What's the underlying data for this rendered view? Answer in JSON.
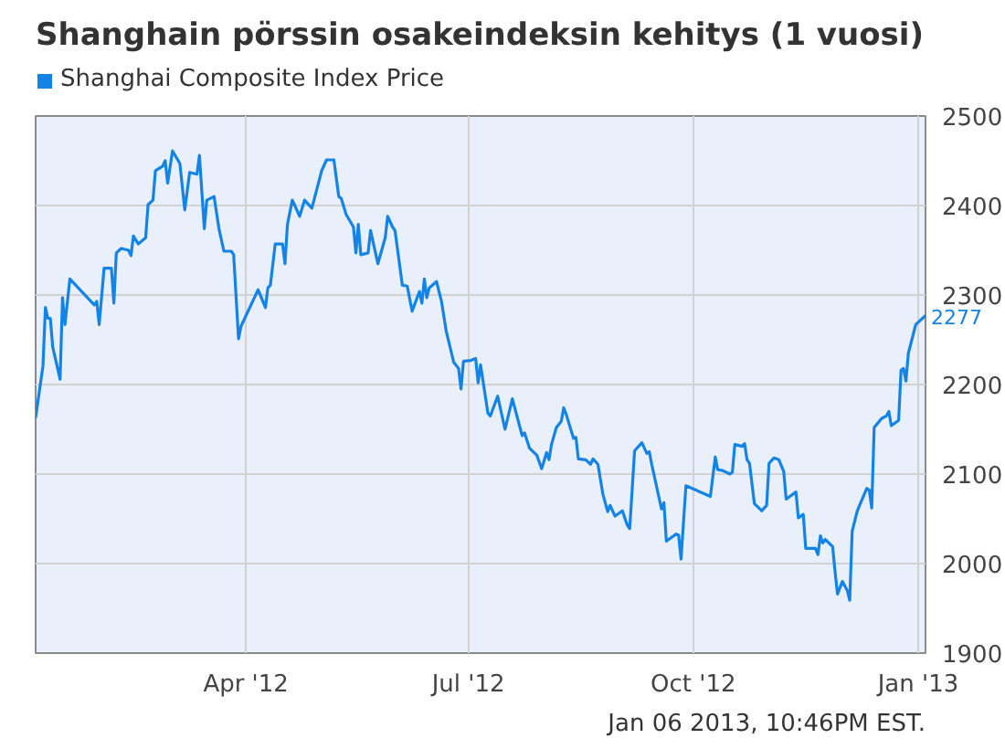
{
  "chart_data": {
    "type": "line",
    "title": "Shanghain pörssin osakeindeksin kehitys (1 vuosi)",
    "annotations": [
      {
        "text": "2277",
        "x": "2013-01-04",
        "y": 2277
      },
      "Jan 06 2013, 10:46PM EST."
    ],
    "x": [
      "2012-01-06",
      "2012-01-09",
      "2012-01-10",
      "2012-01-11",
      "2012-01-12",
      "2012-01-13",
      "2012-01-16",
      "2012-01-17",
      "2012-01-18",
      "2012-01-20",
      "2012-01-30",
      "2012-01-31",
      "2012-02-01",
      "2012-02-03",
      "2012-02-06",
      "2012-02-07",
      "2012-02-08",
      "2012-02-10",
      "2012-02-13",
      "2012-02-14",
      "2012-02-15",
      "2012-02-17",
      "2012-02-20",
      "2012-02-21",
      "2012-02-23",
      "2012-02-24",
      "2012-02-27",
      "2012-02-28",
      "2012-02-29",
      "2012-03-02",
      "2012-03-05",
      "2012-03-07",
      "2012-03-09",
      "2012-03-12",
      "2012-03-13",
      "2012-03-15",
      "2012-03-16",
      "2012-03-19",
      "2012-03-21",
      "2012-03-23",
      "2012-03-26",
      "2012-03-27",
      "2012-03-29",
      "2012-03-30",
      "2012-04-06",
      "2012-04-09",
      "2012-04-10",
      "2012-04-11",
      "2012-04-13",
      "2012-04-16",
      "2012-04-17",
      "2012-04-18",
      "2012-04-20",
      "2012-04-23",
      "2012-04-25",
      "2012-04-28",
      "2012-05-02",
      "2012-05-04",
      "2012-05-07",
      "2012-05-09",
      "2012-05-10",
      "2012-05-12",
      "2012-05-15",
      "2012-05-16",
      "2012-05-17",
      "2012-05-18",
      "2012-05-21",
      "2012-05-22",
      "2012-05-25",
      "2012-05-28",
      "2012-05-29",
      "2012-05-31",
      "2012-06-01",
      "2012-06-04",
      "2012-06-06",
      "2012-06-08",
      "2012-06-11",
      "2012-06-12",
      "2012-06-13",
      "2012-06-14",
      "2012-06-15",
      "2012-06-18",
      "2012-06-20",
      "2012-06-22",
      "2012-06-25",
      "2012-06-27",
      "2012-06-28",
      "2012-06-29",
      "2012-07-02",
      "2012-07-04",
      "2012-07-05",
      "2012-07-06",
      "2012-07-09",
      "2012-07-10",
      "2012-07-13",
      "2012-07-16",
      "2012-07-19",
      "2012-07-23",
      "2012-07-24",
      "2012-07-26",
      "2012-07-29",
      "2012-07-31",
      "2012-08-02",
      "2012-08-03",
      "2012-08-04",
      "2012-08-06",
      "2012-08-08",
      "2012-08-09",
      "2012-08-10",
      "2012-08-13",
      "2012-08-14",
      "2012-08-15",
      "2012-08-18",
      "2012-08-20",
      "2012-08-21",
      "2012-08-23",
      "2012-08-25",
      "2012-08-27",
      "2012-08-28",
      "2012-08-30",
      "2012-09-02",
      "2012-09-04",
      "2012-09-05",
      "2012-09-07",
      "2012-09-10",
      "2012-09-11",
      "2012-09-12",
      "2012-09-13",
      "2012-09-14",
      "2012-09-18",
      "2012-09-19",
      "2012-09-20",
      "2012-09-24",
      "2012-09-25",
      "2012-09-26",
      "2012-09-28",
      "2012-10-08",
      "2012-10-10",
      "2012-10-11",
      "2012-10-13",
      "2012-10-16",
      "2012-10-17",
      "2012-10-18",
      "2012-10-21",
      "2012-10-22",
      "2012-10-23",
      "2012-10-24",
      "2012-10-26",
      "2012-10-29",
      "2012-10-31",
      "2012-11-01",
      "2012-11-03",
      "2012-11-05",
      "2012-11-07",
      "2012-11-08",
      "2012-11-10",
      "2012-11-12",
      "2012-11-13",
      "2012-11-15",
      "2012-11-16",
      "2012-11-20",
      "2012-11-21",
      "2012-11-22",
      "2012-11-23",
      "2012-11-24",
      "2012-11-27",
      "2012-11-28",
      "2012-11-29",
      "2012-12-01",
      "2012-12-03",
      "2012-12-04",
      "2012-12-05",
      "2012-12-07",
      "2012-12-08",
      "2012-12-11",
      "2012-12-12",
      "2012-12-13",
      "2012-12-14",
      "2012-12-17",
      "2012-12-19",
      "2012-12-20",
      "2012-12-21",
      "2012-12-24",
      "2012-12-25",
      "2012-12-26",
      "2012-12-27",
      "2012-12-28",
      "2012-12-31",
      "2013-01-02",
      "2013-01-04"
    ],
    "series": [
      {
        "name": "Shanghai Composite Index Price",
        "color": "#1383e6",
        "values": [
          2163,
          2221,
          2286,
          2274,
          2274,
          2242,
          2206,
          2297,
          2267,
          2318,
          2289,
          2293,
          2267,
          2330,
          2330,
          2291,
          2347,
          2352,
          2350,
          2344,
          2366,
          2357,
          2364,
          2401,
          2406,
          2439,
          2444,
          2450,
          2425,
          2461,
          2447,
          2395,
          2437,
          2435,
          2456,
          2374,
          2406,
          2410,
          2374,
          2349,
          2349,
          2345,
          2251,
          2265,
          2306,
          2286,
          2308,
          2311,
          2357,
          2357,
          2335,
          2379,
          2406,
          2388,
          2406,
          2397,
          2439,
          2451,
          2451,
          2410,
          2408,
          2390,
          2376,
          2347,
          2379,
          2345,
          2347,
          2372,
          2335,
          2364,
          2388,
          2376,
          2372,
          2311,
          2310,
          2282,
          2304,
          2291,
          2318,
          2297,
          2308,
          2315,
          2293,
          2259,
          2225,
          2218,
          2195,
          2226,
          2227,
          2229,
          2202,
          2222,
          2168,
          2165,
          2187,
          2150,
          2184,
          2143,
          2146,
          2129,
          2121,
          2106,
          2124,
          2116,
          2133,
          2152,
          2159,
          2174,
          2167,
          2140,
          2141,
          2117,
          2116,
          2111,
          2117,
          2111,
          2078,
          2058,
          2065,
          2053,
          2059,
          2043,
          2039,
          2126,
          2135,
          2129,
          2123,
          2125,
          2111,
          2061,
          2068,
          2025,
          2033,
          2032,
          2005,
          2087,
          2075,
          2119,
          2105,
          2104,
          2100,
          2102,
          2133,
          2131,
          2134,
          2116,
          2112,
          2067,
          2059,
          2065,
          2112,
          2118,
          2116,
          2103,
          2072,
          2076,
          2080,
          2051,
          2055,
          2017,
          2017,
          2010,
          2031,
          2023,
          2027,
          2019,
          1991,
          1966,
          1980,
          1970,
          1959,
          2036,
          2058,
          2065,
          2084,
          2082,
          2062,
          2152,
          2162,
          2165,
          2170,
          2154,
          2160,
          2216,
          2218,
          2204,
          2235,
          2267,
          2272,
          2277
        ]
      }
    ],
    "xlim": [
      "2012-01-06",
      "2013-01-04"
    ],
    "xticks": [
      {
        "value": "2012-04-01",
        "label": "Apr '12"
      },
      {
        "value": "2012-07-01",
        "label": "Jul '12"
      },
      {
        "value": "2012-10-01",
        "label": "Oct '12"
      },
      {
        "value": "2013-01-01",
        "label": "Jan '13"
      }
    ],
    "ylim": [
      1900,
      2500
    ],
    "yticks": [
      1900,
      2000,
      2100,
      2200,
      2300,
      2400,
      2500
    ],
    "grid": true,
    "legend": "top left"
  }
}
